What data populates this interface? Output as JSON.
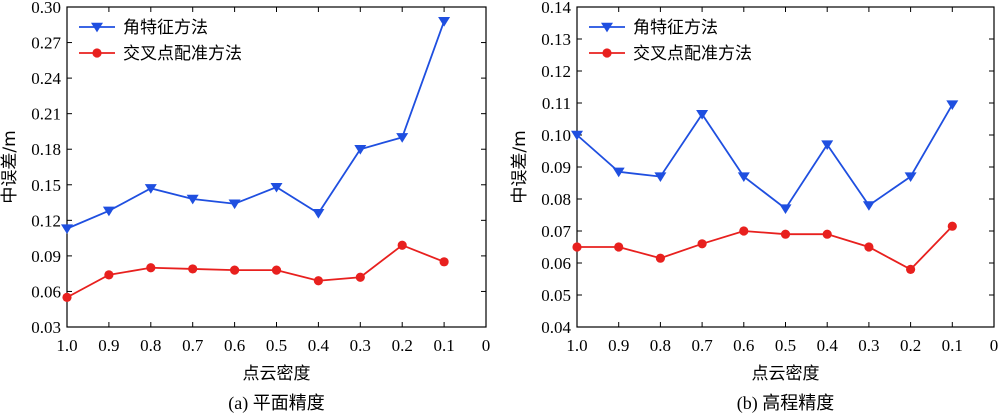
{
  "colors": {
    "angle_method": "#1f4fe0",
    "intersection_method": "#e8201e",
    "axis": "#000000"
  },
  "chart_data": [
    {
      "type": "line",
      "caption": "(a) 平面精度",
      "xlabel": "点云密度",
      "ylabel": "中误差/m",
      "x_reversed": true,
      "xlim": [
        1.0,
        0
      ],
      "x_ticks": [
        "1.0",
        "0.9",
        "0.8",
        "0.7",
        "0.6",
        "0.5",
        "0.4",
        "0.3",
        "0.2",
        "0.1",
        "0"
      ],
      "x_tick_values": [
        1.0,
        0.9,
        0.8,
        0.7,
        0.6,
        0.5,
        0.4,
        0.3,
        0.2,
        0.1,
        0
      ],
      "ylim": [
        0.03,
        0.3
      ],
      "y_ticks": [
        "0.03",
        "0.06",
        "0.09",
        "0.12",
        "0.15",
        "0.18",
        "0.21",
        "0.24",
        "0.27",
        "0.30"
      ],
      "y_tick_values": [
        0.03,
        0.06,
        0.09,
        0.12,
        0.15,
        0.18,
        0.21,
        0.24,
        0.27,
        0.3
      ],
      "x": [
        1.0,
        0.9,
        0.8,
        0.7,
        0.6,
        0.5,
        0.4,
        0.3,
        0.2,
        0.1
      ],
      "legend_position": "top-left",
      "series": [
        {
          "name": "角特征方法",
          "marker": "triangle-down",
          "color": "#1f4fe0",
          "values": [
            0.113,
            0.128,
            0.147,
            0.138,
            0.134,
            0.148,
            0.126,
            0.18,
            0.19,
            0.288
          ]
        },
        {
          "name": "交叉点配准方法",
          "marker": "circle",
          "color": "#e8201e",
          "values": [
            0.055,
            0.074,
            0.08,
            0.079,
            0.078,
            0.078,
            0.069,
            0.072,
            0.099,
            0.085
          ]
        }
      ]
    },
    {
      "type": "line",
      "caption": "(b) 高程精度",
      "xlabel": "点云密度",
      "ylabel": "中误差/m",
      "x_reversed": true,
      "xlim": [
        1.0,
        0
      ],
      "x_ticks": [
        "1.0",
        "0.9",
        "0.8",
        "0.7",
        "0.6",
        "0.5",
        "0.4",
        "0.3",
        "0.2",
        "0.1",
        "0"
      ],
      "x_tick_values": [
        1.0,
        0.9,
        0.8,
        0.7,
        0.6,
        0.5,
        0.4,
        0.3,
        0.2,
        0.1,
        0
      ],
      "ylim": [
        0.04,
        0.14
      ],
      "y_ticks": [
        "0.04",
        "0.05",
        "0.06",
        "0.07",
        "0.08",
        "0.09",
        "0.10",
        "0.11",
        "0.12",
        "0.13",
        "0.14"
      ],
      "y_tick_values": [
        0.04,
        0.05,
        0.06,
        0.07,
        0.08,
        0.09,
        0.1,
        0.11,
        0.12,
        0.13,
        0.14
      ],
      "x": [
        1.0,
        0.9,
        0.8,
        0.7,
        0.6,
        0.5,
        0.4,
        0.3,
        0.2,
        0.1
      ],
      "legend_position": "top-left",
      "series": [
        {
          "name": "角特征方法",
          "marker": "triangle-down",
          "color": "#1f4fe0",
          "values": [
            0.1,
            0.0885,
            0.087,
            0.1065,
            0.087,
            0.077,
            0.097,
            0.078,
            0.087,
            0.1095
          ]
        },
        {
          "name": "交叉点配准方法",
          "marker": "circle",
          "color": "#e8201e",
          "values": [
            0.065,
            0.065,
            0.0615,
            0.066,
            0.07,
            0.069,
            0.069,
            0.065,
            0.058,
            0.0715
          ]
        }
      ]
    }
  ]
}
